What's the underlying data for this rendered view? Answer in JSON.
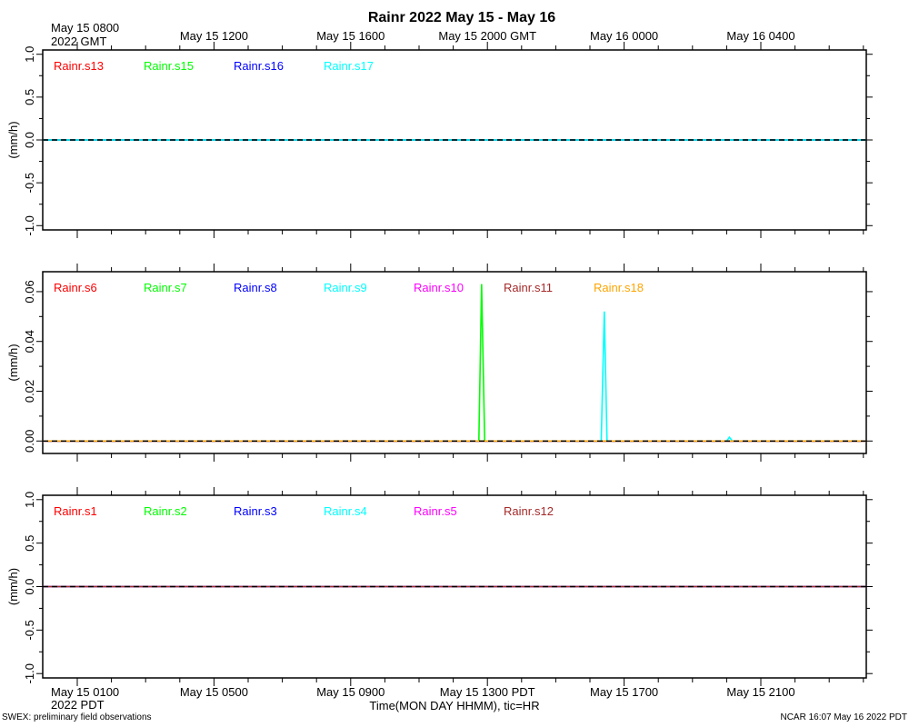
{
  "chart_data": {
    "title": "Rainr 2022 May 15 - May 16",
    "xlabel": "Time(MON DAY HHMM), tic=HR",
    "x_unit": "hours since 2022 May 15 0800 GMT",
    "xlim": [
      0,
      24
    ],
    "top_ticks": [
      {
        "x": 0,
        "line1": "May 15 0800",
        "line2": "2022 GMT"
      },
      {
        "x": 4,
        "line1": "May 15 1200",
        "line2": ""
      },
      {
        "x": 8,
        "line1": "May 15 1600",
        "line2": ""
      },
      {
        "x": 12,
        "line1": "May 15 2000 GMT",
        "line2": ""
      },
      {
        "x": 16,
        "line1": "May 16 0000",
        "line2": ""
      },
      {
        "x": 20,
        "line1": "May 16 0400",
        "line2": ""
      }
    ],
    "bottom_ticks": [
      {
        "x": 0,
        "line1": "May 15 0100",
        "line2": "2022 PDT"
      },
      {
        "x": 4,
        "line1": "May 15 0500",
        "line2": ""
      },
      {
        "x": 8,
        "line1": "May 15 0900",
        "line2": ""
      },
      {
        "x": 12,
        "line1": "May 15 1300 PDT",
        "line2": ""
      },
      {
        "x": 16,
        "line1": "May 15 1700",
        "line2": ""
      },
      {
        "x": 20,
        "line1": "May 15 2100",
        "line2": ""
      }
    ],
    "panels": [
      {
        "type": "line",
        "ylabel": "(mm/h)",
        "ylim": [
          -1.05,
          1.05
        ],
        "yticks": [
          {
            "v": 1.0,
            "label": "1.0"
          },
          {
            "v": 0.5,
            "label": "0.5"
          },
          {
            "v": 0.0,
            "label": "0.0"
          },
          {
            "v": -0.5,
            "label": "-0.5"
          },
          {
            "v": -1.0,
            "label": "-1.0"
          }
        ],
        "series": [
          {
            "name": "Rainr.s13",
            "color": "#ff0000",
            "points": [
              [
                0,
                0
              ],
              [
                24,
                0
              ]
            ]
          },
          {
            "name": "Rainr.s15",
            "color": "#00ff00",
            "points": [
              [
                0,
                0
              ],
              [
                24,
                0
              ]
            ]
          },
          {
            "name": "Rainr.s16",
            "color": "#0000ff",
            "points": [
              [
                0,
                0
              ],
              [
                24,
                0
              ]
            ]
          },
          {
            "name": "Rainr.s17",
            "color": "#00ffff",
            "points": [
              [
                0,
                0
              ],
              [
                24,
                0
              ]
            ]
          }
        ]
      },
      {
        "type": "line",
        "ylabel": "(mm/h)",
        "ylim": [
          -0.005,
          0.068
        ],
        "yticks": [
          {
            "v": 0.06,
            "label": "0.06"
          },
          {
            "v": 0.04,
            "label": "0.04"
          },
          {
            "v": 0.02,
            "label": "0.02"
          },
          {
            "v": 0.0,
            "label": "0.00"
          }
        ],
        "series": [
          {
            "name": "Rainr.s6",
            "color": "#ff0000",
            "points": [
              [
                0,
                0
              ],
              [
                24,
                0
              ]
            ]
          },
          {
            "name": "Rainr.s7",
            "color": "#00ff00",
            "points": [
              [
                0,
                0
              ],
              [
                11.75,
                0
              ],
              [
                11.83,
                0.063
              ],
              [
                11.92,
                0
              ],
              [
                24,
                0
              ]
            ]
          },
          {
            "name": "Rainr.s8",
            "color": "#0000ff",
            "points": [
              [
                0,
                0
              ],
              [
                24,
                0
              ]
            ]
          },
          {
            "name": "Rainr.s9",
            "color": "#00ffff",
            "points": [
              [
                0,
                0
              ],
              [
                15.33,
                0
              ],
              [
                15.42,
                0.052
              ],
              [
                15.5,
                0
              ],
              [
                19.0,
                0
              ],
              [
                19.08,
                0.0015
              ],
              [
                19.17,
                0
              ],
              [
                24,
                0
              ]
            ]
          },
          {
            "name": "Rainr.s10",
            "color": "#ff00ff",
            "points": [
              [
                0,
                0
              ],
              [
                24,
                0
              ]
            ]
          },
          {
            "name": "Rainr.s11",
            "color": "#a52a2a",
            "points": [
              [
                0,
                0
              ],
              [
                24,
                0
              ]
            ]
          },
          {
            "name": "Rainr.s18",
            "color": "#ffa500",
            "points": [
              [
                0,
                0
              ],
              [
                24,
                0
              ]
            ]
          }
        ]
      },
      {
        "type": "line",
        "ylabel": "(mm/h)",
        "ylim": [
          -1.05,
          1.05
        ],
        "yticks": [
          {
            "v": 1.0,
            "label": "1.0"
          },
          {
            "v": 0.5,
            "label": "0.5"
          },
          {
            "v": 0.0,
            "label": "0.0"
          },
          {
            "v": -0.5,
            "label": "-0.5"
          },
          {
            "v": -1.0,
            "label": "-1.0"
          }
        ],
        "series": [
          {
            "name": "Rainr.s1",
            "color": "#ff0000",
            "points": [
              [
                0,
                0
              ],
              [
                24,
                0
              ]
            ]
          },
          {
            "name": "Rainr.s2",
            "color": "#00ff00",
            "points": [
              [
                0,
                0
              ],
              [
                24,
                0
              ]
            ]
          },
          {
            "name": "Rainr.s3",
            "color": "#0000ff",
            "points": [
              [
                0,
                0
              ],
              [
                24,
                0
              ]
            ]
          },
          {
            "name": "Rainr.s4",
            "color": "#00ffff",
            "points": [
              [
                0,
                0
              ],
              [
                24,
                0
              ]
            ]
          },
          {
            "name": "Rainr.s5",
            "color": "#ff00ff",
            "points": [
              [
                0,
                0
              ],
              [
                24,
                0
              ]
            ]
          },
          {
            "name": "Rainr.s12",
            "color": "#a52a2a",
            "points": [
              [
                0,
                0
              ],
              [
                24,
                0
              ]
            ]
          }
        ]
      }
    ]
  },
  "footer": {
    "left": "SWEX: preliminary field observations",
    "right": "NCAR 16:07 May 16 2022 PDT"
  }
}
